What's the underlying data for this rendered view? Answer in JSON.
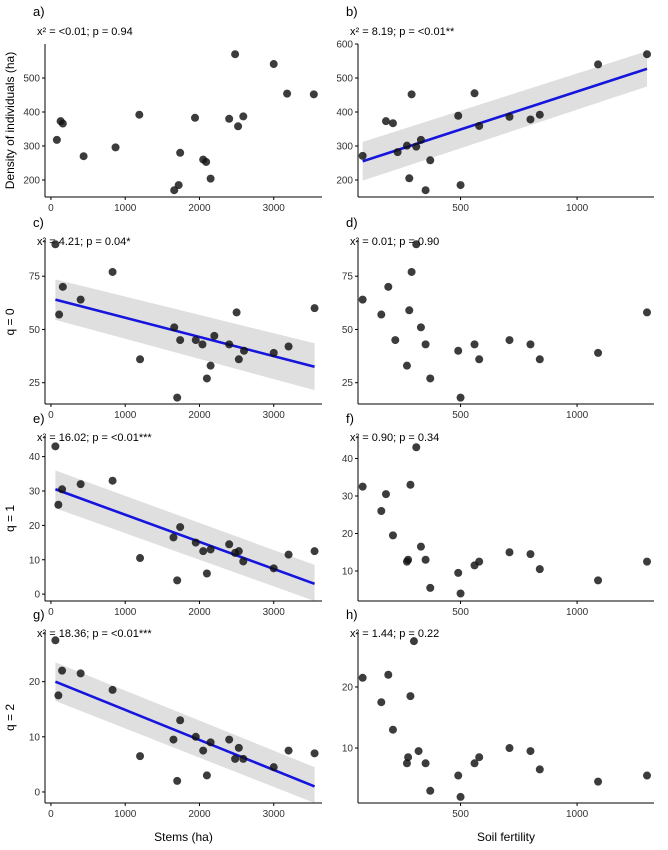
{
  "figure": {
    "xlabel_left": "Stems (ha)",
    "xlabel_right": "Soil fertility",
    "colors": {
      "point": "#111111",
      "line": "#1515dd",
      "ribbon": "#d9d9d9",
      "axis": "#000000"
    }
  },
  "chart_data": [
    {
      "id": "a",
      "type": "scatter",
      "panel_label": "a)",
      "stats": "x² = <0.01; p = 0.94",
      "ylabel": "Density of individuals (ha)",
      "xlim": [
        -80,
        3650
      ],
      "ylim": [
        150,
        600
      ],
      "yticks": [
        200,
        300,
        400,
        500
      ],
      "xticks": [
        0,
        1000,
        2000,
        3000
      ],
      "x": [
        80,
        130,
        160,
        440,
        870,
        1190,
        1660,
        1720,
        1740,
        1940,
        2050,
        2090,
        2150,
        2400,
        2480,
        2520,
        2590,
        3000,
        3180,
        3540
      ],
      "y": [
        318,
        373,
        366,
        270,
        296,
        392,
        170,
        185,
        280,
        383,
        260,
        253,
        204,
        380,
        570,
        358,
        387,
        541,
        454,
        452
      ]
    },
    {
      "id": "b",
      "type": "scatter",
      "panel_label": "b)",
      "stats": "x² = 8.19; p = <0.01**",
      "xlim": [
        60,
        1330
      ],
      "ylim": [
        150,
        600
      ],
      "yticks": [
        200,
        300,
        400,
        500,
        600
      ],
      "xticks": [
        500,
        1000
      ],
      "x": [
        80,
        180,
        210,
        230,
        270,
        280,
        290,
        310,
        330,
        350,
        370,
        490,
        500,
        560,
        580,
        710,
        800,
        840,
        1090,
        1300
      ],
      "y": [
        271,
        373,
        367,
        282,
        301,
        205,
        452,
        298,
        318,
        170,
        258,
        389,
        185,
        455,
        359,
        386,
        378,
        392,
        540,
        570
      ],
      "fit": {
        "x": [
          80,
          1300
        ],
        "y": [
          255,
          527
        ],
        "ci_lo": [
          198,
          475
        ],
        "ci_hi": [
          312,
          579
        ]
      }
    },
    {
      "id": "c",
      "type": "scatter",
      "panel_label": "c)",
      "stats": "x² = 4.21; p = 0.04*",
      "ylabel": "q = 0",
      "xlim": [
        -80,
        3650
      ],
      "ylim": [
        15,
        92
      ],
      "yticks": [
        25,
        50,
        75
      ],
      "xticks": [
        0,
        1000,
        2000,
        3000
      ],
      "x": [
        60,
        110,
        160,
        400,
        830,
        1200,
        1660,
        1700,
        1740,
        1950,
        2040,
        2100,
        2150,
        2200,
        2400,
        2500,
        2530,
        2600,
        3000,
        3200,
        3550
      ],
      "y": [
        90,
        57,
        70,
        64,
        77,
        36,
        51,
        18,
        45,
        45,
        43,
        27,
        33,
        47,
        43,
        58,
        36,
        40,
        39,
        42,
        60
      ],
      "fit": {
        "x": [
          60,
          3550
        ],
        "y": [
          64,
          32.5
        ],
        "ci_lo": [
          54.5,
          21.5
        ],
        "ci_hi": [
          73.5,
          43.5
        ]
      }
    },
    {
      "id": "d",
      "type": "scatter",
      "panel_label": "d)",
      "stats": "x² = 0.01; p = 0.90",
      "xlim": [
        60,
        1330
      ],
      "ylim": [
        15,
        92
      ],
      "yticks": [
        25,
        50,
        75
      ],
      "xticks": [
        500,
        1000
      ],
      "x": [
        80,
        160,
        190,
        220,
        270,
        280,
        290,
        310,
        330,
        350,
        370,
        490,
        500,
        560,
        580,
        710,
        800,
        840,
        1090,
        1300
      ],
      "y": [
        64,
        57,
        70,
        45,
        33,
        59,
        77,
        90,
        51,
        43,
        27,
        40,
        18,
        43,
        36,
        45,
        43,
        36,
        39,
        58
      ]
    },
    {
      "id": "e",
      "type": "scatter",
      "panel_label": "e)",
      "stats": "x² = 16.02; p = <0.01***",
      "ylabel": "q = 1",
      "xlim": [
        -80,
        3650
      ],
      "ylim": [
        -2,
        46
      ],
      "yticks": [
        0,
        10,
        20,
        30,
        40
      ],
      "xticks": [
        0,
        1000,
        2000,
        3000
      ],
      "x": [
        60,
        100,
        150,
        400,
        830,
        1200,
        1650,
        1700,
        1740,
        1950,
        2050,
        2100,
        2150,
        2400,
        2480,
        2530,
        2590,
        3000,
        3200,
        3550
      ],
      "y": [
        43,
        26,
        30.5,
        32,
        33,
        10.5,
        16.5,
        4,
        19.5,
        15,
        12.5,
        6,
        13,
        14.5,
        12,
        12.5,
        9.5,
        7.5,
        11.5,
        12.5
      ],
      "fit": {
        "x": [
          60,
          3550
        ],
        "y": [
          30.5,
          3
        ],
        "ci_lo": [
          25,
          -2
        ],
        "ci_hi": [
          36,
          8.5
        ]
      }
    },
    {
      "id": "f",
      "type": "scatter",
      "panel_label": "f)",
      "stats": "x² = 0.90; p = 0.34",
      "xlim": [
        60,
        1330
      ],
      "ylim": [
        2,
        46
      ],
      "yticks": [
        10,
        20,
        30,
        40
      ],
      "xticks": [
        500,
        1000
      ],
      "x": [
        80,
        160,
        180,
        210,
        270,
        275,
        285,
        310,
        330,
        350,
        370,
        490,
        500,
        560,
        580,
        710,
        800,
        840,
        1090,
        1300
      ],
      "y": [
        32.5,
        26,
        30.5,
        19.5,
        12.5,
        13,
        33,
        43,
        16.5,
        13,
        5.5,
        9.5,
        4,
        11.5,
        12.5,
        15,
        14.5,
        10.5,
        7.5,
        12.5
      ]
    },
    {
      "id": "g",
      "type": "scatter",
      "panel_label": "g)",
      "stats": "x² = 18.36; p = <0.01***",
      "ylabel": "q = 2",
      "xlim": [
        -80,
        3650
      ],
      "ylim": [
        -2,
        29
      ],
      "yticks": [
        0,
        10,
        20
      ],
      "xticks": [
        0,
        1000,
        2000,
        3000
      ],
      "x": [
        60,
        100,
        150,
        400,
        830,
        1200,
        1650,
        1700,
        1740,
        1950,
        2050,
        2100,
        2150,
        2400,
        2480,
        2530,
        2590,
        3000,
        3200,
        3550
      ],
      "y": [
        27.5,
        17.5,
        22,
        21.5,
        18.5,
        6.5,
        9.5,
        2,
        13,
        10,
        7.5,
        3,
        9,
        9.5,
        6,
        8,
        6,
        4.5,
        7.5,
        7
      ],
      "fit": {
        "x": [
          60,
          3550
        ],
        "y": [
          20,
          1
        ],
        "ci_lo": [
          16.5,
          -2.5
        ],
        "ci_hi": [
          23.5,
          4.5
        ]
      }
    },
    {
      "id": "h",
      "type": "scatter",
      "panel_label": "h)",
      "stats": "x² = 1.44; p = 0.22",
      "xlim": [
        60,
        1330
      ],
      "ylim": [
        1,
        29
      ],
      "yticks": [
        10,
        20
      ],
      "xticks": [
        500,
        1000
      ],
      "x": [
        80,
        160,
        190,
        210,
        270,
        275,
        285,
        300,
        320,
        350,
        370,
        490,
        500,
        560,
        580,
        710,
        800,
        840,
        1090,
        1300
      ],
      "y": [
        21.5,
        17.5,
        22,
        13,
        7.5,
        8.5,
        18.5,
        27.5,
        9.5,
        7.5,
        3,
        5.5,
        2,
        7.5,
        8.5,
        10,
        9.5,
        6.5,
        4.5,
        5.5
      ]
    }
  ]
}
